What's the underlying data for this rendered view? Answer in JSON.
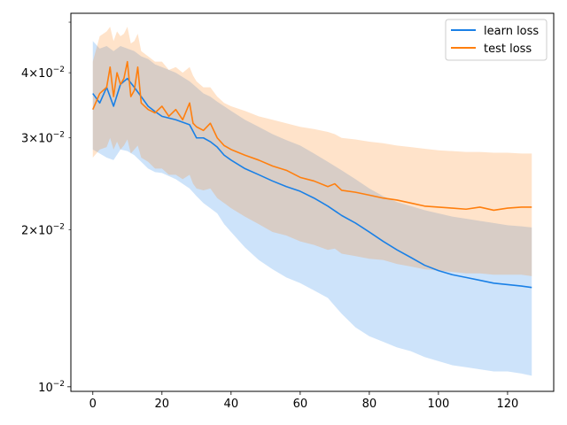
{
  "chart_data": {
    "type": "line",
    "title": "",
    "xlabel": "",
    "ylabel": "",
    "yscale": "log",
    "xlim": [
      -6.35,
      133.35
    ],
    "ylim": [
      0.0098,
      0.052
    ],
    "grid": false,
    "legend_position": "top-right",
    "x_ticks": [
      0,
      20,
      40,
      60,
      80,
      100,
      120
    ],
    "x_tick_labels": [
      "0",
      "20",
      "40",
      "60",
      "80",
      "100",
      "120"
    ],
    "y_major_ticks": [
      0.01
    ],
    "y_major_tick_labels": [
      {
        "base": "10",
        "exp": "−2"
      }
    ],
    "y_minor_ticks": [
      0.02,
      0.03,
      0.04,
      0.05
    ],
    "y_minor_tick_labels": [
      {
        "value": 0.02,
        "mantissa": "2",
        "base": "10",
        "exp": "−2"
      },
      {
        "value": 0.03,
        "mantissa": "3",
        "base": "10",
        "exp": "−2"
      },
      {
        "value": 0.04,
        "mantissa": "4",
        "base": "10",
        "exp": "−2"
      },
      {
        "value": 0.05,
        "mantissa": "",
        "base": "",
        "exp": ""
      }
    ],
    "series": [
      {
        "name": "learn loss",
        "color": "#1a80e6",
        "band_color": "#cce3fb",
        "x": [
          0,
          2,
          4,
          6,
          8,
          10,
          12,
          14,
          16,
          18,
          20,
          24,
          28,
          30,
          32,
          34,
          36,
          38,
          40,
          44,
          48,
          52,
          56,
          60,
          64,
          68,
          72,
          76,
          80,
          84,
          88,
          92,
          96,
          100,
          104,
          108,
          112,
          116,
          120,
          124,
          127
        ],
        "y": [
          0.0365,
          0.035,
          0.0375,
          0.0345,
          0.038,
          0.039,
          0.0375,
          0.036,
          0.0345,
          0.0337,
          0.033,
          0.0325,
          0.0318,
          0.03,
          0.03,
          0.0295,
          0.0288,
          0.0278,
          0.0272,
          0.0262,
          0.0255,
          0.0248,
          0.0242,
          0.0237,
          0.023,
          0.0222,
          0.0213,
          0.0206,
          0.0198,
          0.019,
          0.0183,
          0.0177,
          0.0171,
          0.0167,
          0.0164,
          0.0162,
          0.016,
          0.0158,
          0.0157,
          0.0156,
          0.0155
        ],
        "lower": [
          0.0285,
          0.028,
          0.0275,
          0.0272,
          0.0285,
          0.0283,
          0.0278,
          0.027,
          0.0262,
          0.0258,
          0.0257,
          0.025,
          0.024,
          0.0232,
          0.0225,
          0.022,
          0.0215,
          0.0205,
          0.0198,
          0.0185,
          0.0175,
          0.0168,
          0.0162,
          0.0158,
          0.0153,
          0.0148,
          0.0138,
          0.013,
          0.0125,
          0.0122,
          0.0119,
          0.0117,
          0.0114,
          0.0112,
          0.011,
          0.0109,
          0.0108,
          0.0107,
          0.0107,
          0.0106,
          0.0105
        ],
        "upper": [
          0.046,
          0.0445,
          0.045,
          0.044,
          0.045,
          0.0445,
          0.044,
          0.043,
          0.0425,
          0.0415,
          0.041,
          0.04,
          0.0385,
          0.0375,
          0.0365,
          0.036,
          0.0352,
          0.0345,
          0.0338,
          0.0325,
          0.0315,
          0.0305,
          0.0297,
          0.029,
          0.028,
          0.027,
          0.026,
          0.025,
          0.024,
          0.0232,
          0.0226,
          0.0222,
          0.0218,
          0.0215,
          0.0212,
          0.021,
          0.0208,
          0.0206,
          0.0204,
          0.0203,
          0.0202
        ]
      },
      {
        "name": "test loss",
        "color": "#ff7f0e",
        "band_color": "#fee0c7",
        "x": [
          0,
          2,
          4,
          5,
          6,
          7,
          8,
          9,
          10,
          11,
          12,
          13,
          14,
          16,
          18,
          20,
          22,
          24,
          26,
          28,
          29,
          30,
          32,
          34,
          36,
          38,
          40,
          44,
          48,
          52,
          56,
          60,
          64,
          68,
          70,
          72,
          76,
          80,
          84,
          88,
          92,
          96,
          100,
          104,
          108,
          112,
          116,
          120,
          124,
          127
        ],
        "y": [
          0.034,
          0.0365,
          0.0375,
          0.041,
          0.036,
          0.04,
          0.038,
          0.039,
          0.042,
          0.036,
          0.037,
          0.041,
          0.035,
          0.034,
          0.0335,
          0.0345,
          0.033,
          0.034,
          0.0325,
          0.035,
          0.032,
          0.0315,
          0.031,
          0.032,
          0.03,
          0.029,
          0.0285,
          0.0278,
          0.0272,
          0.0265,
          0.026,
          0.0252,
          0.0248,
          0.0242,
          0.0245,
          0.0238,
          0.0236,
          0.0233,
          0.023,
          0.0228,
          0.0225,
          0.0222,
          0.0221,
          0.022,
          0.0219,
          0.0221,
          0.0218,
          0.022,
          0.0221,
          0.0221
        ],
        "lower": [
          0.0275,
          0.0285,
          0.0288,
          0.03,
          0.0285,
          0.0295,
          0.0285,
          0.029,
          0.0298,
          0.028,
          0.0285,
          0.029,
          0.0275,
          0.027,
          0.0262,
          0.0262,
          0.0255,
          0.0255,
          0.025,
          0.0255,
          0.0245,
          0.024,
          0.0238,
          0.024,
          0.023,
          0.0225,
          0.022,
          0.0212,
          0.0205,
          0.0198,
          0.0195,
          0.019,
          0.0187,
          0.0183,
          0.0184,
          0.018,
          0.0178,
          0.0176,
          0.0175,
          0.0172,
          0.017,
          0.0168,
          0.0167,
          0.0166,
          0.0165,
          0.0165,
          0.0164,
          0.0164,
          0.0164,
          0.0163
        ],
        "upper": [
          0.042,
          0.047,
          0.048,
          0.049,
          0.046,
          0.048,
          0.047,
          0.0475,
          0.049,
          0.0455,
          0.046,
          0.0475,
          0.044,
          0.043,
          0.042,
          0.042,
          0.0405,
          0.041,
          0.04,
          0.041,
          0.0395,
          0.0385,
          0.0375,
          0.0375,
          0.036,
          0.035,
          0.0345,
          0.0338,
          0.033,
          0.0325,
          0.032,
          0.0315,
          0.0312,
          0.0308,
          0.0305,
          0.03,
          0.0298,
          0.0295,
          0.0293,
          0.029,
          0.0288,
          0.0286,
          0.0284,
          0.0283,
          0.0282,
          0.0282,
          0.0281,
          0.0281,
          0.028,
          0.028
        ]
      }
    ]
  }
}
